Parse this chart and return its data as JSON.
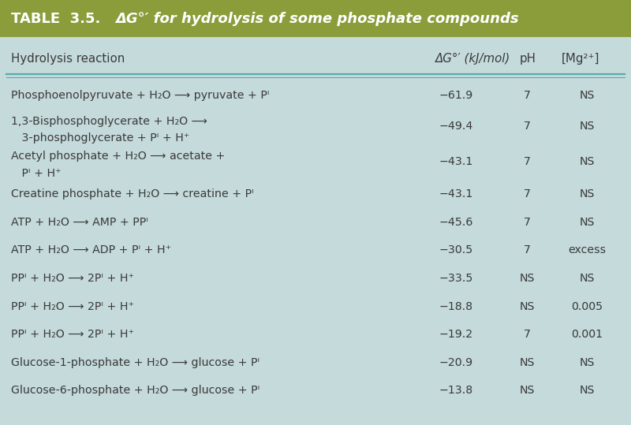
{
  "header_bg": "#8B9D3A",
  "table_bg": "#C5DADB",
  "header_text_color": "#FFFFFF",
  "body_text_color": "#3A3A3A",
  "col_header": [
    "Hydrolysis reaction",
    "ΔG°′ (kJ/mol)",
    "pH",
    "[Mg²⁺]"
  ],
  "rows": [
    {
      "reaction_line1": "Phosphoenolpyruvate + H₂O ⟶ pyruvate + Pᴵ",
      "reaction_line2": "",
      "dG": "−61.9",
      "pH": "7",
      "Mg": "NS"
    },
    {
      "reaction_line1": "1,3-Bisphosphoglycerate + H₂O ⟶",
      "reaction_line2": "   3-phosphoglycerate + Pᴵ + H⁺",
      "dG": "−49.4",
      "pH": "7",
      "Mg": "NS"
    },
    {
      "reaction_line1": "Acetyl phosphate + H₂O ⟶ acetate +",
      "reaction_line2": "   Pᴵ + H⁺",
      "dG": "−43.1",
      "pH": "7",
      "Mg": "NS"
    },
    {
      "reaction_line1": "Creatine phosphate + H₂O ⟶ creatine + Pᴵ",
      "reaction_line2": "",
      "dG": "−43.1",
      "pH": "7",
      "Mg": "NS"
    },
    {
      "reaction_line1": "ATP + H₂O ⟶ AMP + PPᴵ",
      "reaction_line2": "",
      "dG": "−45.6",
      "pH": "7",
      "Mg": "NS"
    },
    {
      "reaction_line1": "ATP + H₂O ⟶ ADP + Pᴵ + H⁺",
      "reaction_line2": "",
      "dG": "−30.5",
      "pH": "7",
      "Mg": "excess"
    },
    {
      "reaction_line1": "PPᴵ + H₂O ⟶ 2Pᴵ + H⁺",
      "reaction_line2": "",
      "dG": "−33.5",
      "pH": "NS",
      "Mg": "NS"
    },
    {
      "reaction_line1": "PPᴵ + H₂O ⟶ 2Pᴵ + H⁺",
      "reaction_line2": "",
      "dG": "−18.8",
      "pH": "NS",
      "Mg": "0.005"
    },
    {
      "reaction_line1": "PPᴵ + H₂O ⟶ 2Pᴵ + H⁺",
      "reaction_line2": "",
      "dG": "−19.2",
      "pH": "7",
      "Mg": "0.001"
    },
    {
      "reaction_line1": "Glucose-1-phosphate + H₂O ⟶ glucose + Pᴵ",
      "reaction_line2": "",
      "dG": "−20.9",
      "pH": "NS",
      "Mg": "NS"
    },
    {
      "reaction_line1": "Glucose-6-phosphate + H₂O ⟶ glucose + Pᴵ",
      "reaction_line2": "",
      "dG": "−13.8",
      "pH": "NS",
      "Mg": "NS"
    }
  ],
  "divider_color": "#5AAAAC",
  "figsize": [
    8.0,
    5.39
  ],
  "dpi": 100
}
